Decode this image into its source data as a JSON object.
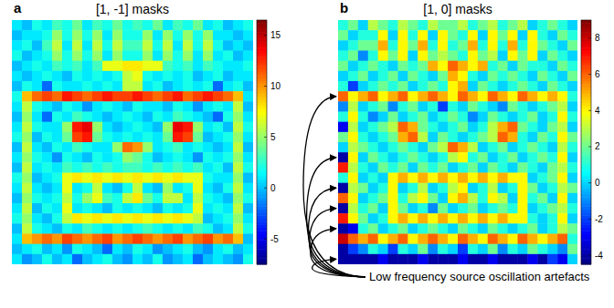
{
  "chart_data": [
    {
      "type": "heatmap",
      "panel_label": "a",
      "title": "[1, -1] masks",
      "colorbar": {
        "lim": [
          -7.5,
          16.5
        ],
        "ticks": [
          -5,
          0,
          5,
          10,
          15
        ]
      },
      "cells": [
        [
          1,
          0,
          2,
          1,
          3,
          2,
          4,
          1,
          3,
          2,
          4,
          2,
          3,
          2,
          4,
          1,
          3,
          2,
          4,
          1,
          2,
          0,
          1,
          2
        ],
        [
          0,
          1,
          1,
          2,
          5,
          2,
          5,
          2,
          5,
          1,
          5,
          2,
          2,
          5,
          1,
          5,
          2,
          5,
          2,
          5,
          1,
          1,
          0,
          1
        ],
        [
          1,
          2,
          0,
          3,
          6,
          1,
          6,
          1,
          6,
          2,
          6,
          3,
          3,
          6,
          2,
          6,
          1,
          6,
          2,
          6,
          2,
          0,
          1,
          0
        ],
        [
          2,
          0,
          1,
          2,
          5,
          2,
          5,
          2,
          5,
          1,
          5,
          2,
          2,
          5,
          1,
          5,
          2,
          5,
          1,
          5,
          1,
          2,
          0,
          1
        ],
        [
          0,
          1,
          2,
          1,
          3,
          2,
          3,
          1,
          3,
          7,
          7,
          8,
          8,
          7,
          7,
          3,
          2,
          3,
          1,
          3,
          2,
          1,
          1,
          2
        ],
        [
          1,
          0,
          1,
          2,
          1,
          0,
          2,
          1,
          2,
          1,
          2,
          6,
          7,
          2,
          1,
          2,
          1,
          2,
          0,
          1,
          2,
          0,
          1,
          1
        ],
        [
          0,
          2,
          1,
          -2,
          2,
          1,
          1,
          2,
          1,
          2,
          1,
          6,
          6,
          1,
          2,
          0,
          1,
          2,
          1,
          2,
          -2,
          1,
          2,
          0
        ],
        [
          2,
          9,
          11,
          12,
          11,
          13,
          12,
          11,
          12,
          13,
          12,
          12,
          13,
          12,
          11,
          12,
          13,
          11,
          12,
          13,
          12,
          11,
          9,
          1
        ],
        [
          1,
          6,
          2,
          1,
          0,
          2,
          1,
          -1,
          1,
          2,
          1,
          0,
          2,
          1,
          1,
          0,
          2,
          1,
          -1,
          1,
          2,
          1,
          6,
          0
        ],
        [
          0,
          5,
          1,
          -2,
          2,
          1,
          3,
          2,
          1,
          0,
          1,
          2,
          1,
          0,
          2,
          1,
          3,
          2,
          1,
          0,
          -2,
          2,
          5,
          1
        ],
        [
          1,
          6,
          2,
          1,
          1,
          5,
          13,
          14,
          5,
          1,
          0,
          1,
          2,
          1,
          0,
          5,
          14,
          13,
          5,
          1,
          2,
          0,
          6,
          2
        ],
        [
          2,
          5,
          0,
          2,
          1,
          4,
          12,
          13,
          4,
          2,
          1,
          2,
          1,
          2,
          1,
          4,
          13,
          12,
          4,
          0,
          1,
          2,
          5,
          1
        ],
        [
          0,
          6,
          1,
          0,
          2,
          1,
          3,
          2,
          1,
          1,
          5,
          11,
          10,
          5,
          1,
          2,
          3,
          1,
          2,
          1,
          0,
          1,
          6,
          0
        ],
        [
          1,
          5,
          2,
          1,
          -1,
          2,
          1,
          0,
          2,
          1,
          2,
          5,
          4,
          2,
          0,
          1,
          2,
          1,
          -1,
          2,
          1,
          2,
          5,
          1
        ],
        [
          0,
          6,
          1,
          2,
          1,
          3,
          2,
          3,
          2,
          3,
          2,
          3,
          3,
          2,
          3,
          2,
          3,
          2,
          3,
          1,
          2,
          0,
          6,
          2
        ],
        [
          2,
          5,
          0,
          1,
          2,
          7,
          8,
          7,
          8,
          7,
          8,
          7,
          8,
          7,
          8,
          7,
          8,
          7,
          7,
          2,
          1,
          1,
          5,
          0
        ],
        [
          1,
          6,
          1,
          0,
          1,
          7,
          1,
          2,
          6,
          1,
          0,
          2,
          6,
          1,
          0,
          5,
          1,
          2,
          7,
          1,
          0,
          2,
          6,
          1
        ],
        [
          0,
          5,
          2,
          1,
          2,
          6,
          2,
          5,
          7,
          3,
          2,
          6,
          8,
          4,
          2,
          6,
          6,
          1,
          6,
          2,
          1,
          0,
          5,
          2
        ],
        [
          1,
          6,
          0,
          2,
          1,
          7,
          1,
          2,
          1,
          0,
          2,
          1,
          2,
          1,
          0,
          2,
          1,
          2,
          7,
          1,
          2,
          1,
          6,
          0
        ],
        [
          2,
          5,
          1,
          0,
          2,
          6,
          8,
          7,
          8,
          7,
          8,
          7,
          8,
          7,
          8,
          7,
          8,
          7,
          6,
          0,
          1,
          2,
          5,
          1
        ],
        [
          0,
          6,
          2,
          1,
          0,
          2,
          1,
          3,
          2,
          1,
          2,
          1,
          2,
          3,
          2,
          1,
          2,
          1,
          3,
          2,
          0,
          1,
          6,
          2
        ],
        [
          1,
          9,
          10,
          11,
          10,
          12,
          11,
          10,
          11,
          12,
          10,
          11,
          12,
          11,
          10,
          11,
          12,
          10,
          11,
          12,
          10,
          11,
          9,
          0
        ],
        [
          0,
          1,
          2,
          0,
          1,
          -1,
          2,
          1,
          0,
          -2,
          1,
          0,
          2,
          1,
          -1,
          0,
          1,
          2,
          0,
          -1,
          1,
          2,
          0,
          1
        ],
        [
          1,
          -1,
          0,
          2,
          0,
          1,
          -2,
          0,
          1,
          2,
          0,
          -1,
          1,
          0,
          2,
          -1,
          0,
          1,
          -2,
          0,
          1,
          0,
          -1,
          2
        ]
      ]
    },
    {
      "type": "heatmap",
      "panel_label": "b",
      "title": "[1, 0] masks",
      "annotation": "Low frequency source oscillation artefacts",
      "colorbar": {
        "lim": [
          -4.5,
          9
        ],
        "ticks": [
          -4,
          -2,
          0,
          2,
          4,
          6,
          8
        ]
      },
      "cells": [
        [
          1,
          2,
          0,
          3,
          2,
          1,
          3,
          2,
          1,
          3,
          2,
          2,
          3,
          1,
          2,
          3,
          1,
          2,
          3,
          0,
          1,
          2,
          1,
          0
        ],
        [
          2,
          0,
          1,
          1,
          4,
          0,
          4,
          1,
          4,
          0,
          4,
          2,
          1,
          4,
          0,
          4,
          2,
          4,
          0,
          4,
          1,
          0,
          2,
          1
        ],
        [
          0,
          1,
          2,
          2,
          5,
          1,
          4,
          2,
          5,
          1,
          4,
          1,
          2,
          5,
          1,
          4,
          1,
          5,
          1,
          4,
          2,
          1,
          0,
          2
        ],
        [
          1,
          2,
          -1,
          1,
          4,
          2,
          4,
          0,
          4,
          2,
          3,
          2,
          1,
          4,
          2,
          3,
          0,
          4,
          2,
          4,
          0,
          2,
          1,
          0
        ],
        [
          2,
          0,
          1,
          2,
          1,
          0,
          2,
          1,
          2,
          5,
          4,
          6,
          5,
          4,
          5,
          1,
          2,
          0,
          2,
          1,
          1,
          0,
          2,
          1
        ],
        [
          0,
          1,
          2,
          0,
          1,
          2,
          0,
          2,
          1,
          0,
          2,
          5,
          4,
          1,
          0,
          2,
          1,
          2,
          1,
          0,
          2,
          1,
          0,
          2
        ],
        [
          1,
          -2,
          0,
          1,
          2,
          1,
          2,
          0,
          1,
          2,
          1,
          4,
          5,
          0,
          2,
          1,
          0,
          1,
          2,
          1,
          0,
          2,
          1,
          0
        ],
        [
          6,
          4,
          5,
          6,
          4,
          5,
          6,
          4,
          5,
          6,
          5,
          4,
          6,
          5,
          4,
          6,
          5,
          4,
          6,
          5,
          4,
          5,
          4,
          1
        ],
        [
          -1,
          3,
          0,
          1,
          2,
          -1,
          1,
          2,
          0,
          1,
          -2,
          1,
          0,
          2,
          1,
          0,
          -1,
          2,
          1,
          0,
          1,
          2,
          3,
          0
        ],
        [
          1,
          4,
          1,
          -1,
          0,
          2,
          0,
          1,
          2,
          0,
          1,
          2,
          1,
          -1,
          0,
          2,
          1,
          0,
          1,
          2,
          0,
          1,
          4,
          1
        ],
        [
          -3,
          3,
          0,
          1,
          2,
          3,
          6,
          5,
          2,
          1,
          0,
          1,
          2,
          0,
          1,
          3,
          5,
          6,
          2,
          1,
          0,
          2,
          3,
          0
        ],
        [
          2,
          4,
          1,
          0,
          1,
          2,
          5,
          6,
          3,
          0,
          2,
          1,
          0,
          1,
          2,
          3,
          6,
          5,
          1,
          0,
          2,
          1,
          4,
          2
        ],
        [
          0,
          3,
          2,
          1,
          0,
          1,
          2,
          1,
          0,
          2,
          3,
          6,
          5,
          3,
          0,
          1,
          2,
          0,
          1,
          2,
          1,
          0,
          3,
          1
        ],
        [
          -4,
          4,
          0,
          2,
          1,
          0,
          1,
          2,
          1,
          0,
          1,
          3,
          4,
          1,
          2,
          0,
          1,
          2,
          0,
          1,
          2,
          1,
          4,
          0
        ],
        [
          7,
          3,
          1,
          0,
          2,
          1,
          2,
          0,
          2,
          1,
          2,
          0,
          1,
          2,
          0,
          2,
          1,
          0,
          2,
          1,
          0,
          2,
          3,
          1
        ],
        [
          1,
          4,
          0,
          1,
          0,
          4,
          5,
          4,
          5,
          4,
          5,
          4,
          5,
          4,
          5,
          4,
          5,
          4,
          4,
          0,
          1,
          2,
          4,
          0
        ],
        [
          -4,
          3,
          2,
          0,
          1,
          4,
          0,
          1,
          3,
          0,
          1,
          3,
          4,
          0,
          1,
          3,
          0,
          1,
          4,
          2,
          0,
          1,
          3,
          2
        ],
        [
          6,
          4,
          0,
          1,
          2,
          4,
          1,
          3,
          4,
          2,
          0,
          4,
          5,
          3,
          1,
          4,
          3,
          0,
          4,
          1,
          2,
          0,
          4,
          0
        ],
        [
          -4,
          3,
          1,
          2,
          0,
          4,
          2,
          0,
          1,
          -1,
          2,
          0,
          1,
          2,
          0,
          1,
          2,
          1,
          4,
          0,
          1,
          2,
          3,
          1
        ],
        [
          7,
          4,
          2,
          0,
          1,
          4,
          5,
          4,
          5,
          4,
          5,
          4,
          5,
          4,
          5,
          4,
          5,
          4,
          4,
          1,
          0,
          1,
          4,
          0
        ],
        [
          -4,
          -3,
          1,
          2,
          0,
          1,
          2,
          0,
          1,
          2,
          1,
          0,
          2,
          1,
          0,
          2,
          1,
          0,
          1,
          2,
          0,
          1,
          3,
          2
        ],
        [
          8,
          6,
          5,
          6,
          4,
          5,
          6,
          4,
          5,
          6,
          5,
          4,
          6,
          5,
          4,
          6,
          5,
          4,
          6,
          5,
          4,
          5,
          6,
          1
        ],
        [
          -4,
          -2,
          -1,
          1,
          0,
          -2,
          1,
          0,
          2,
          -1,
          1,
          0,
          -2,
          1,
          0,
          2,
          -1,
          1,
          0,
          2,
          1,
          0,
          -1,
          2
        ],
        [
          -4,
          -4,
          -4,
          -4,
          -3,
          -4,
          -4,
          -4,
          -3,
          -4,
          -4,
          -4,
          -3,
          -4,
          -4,
          -3,
          -4,
          -4,
          -4,
          -3,
          -4,
          -2,
          -3,
          0
        ]
      ]
    }
  ]
}
